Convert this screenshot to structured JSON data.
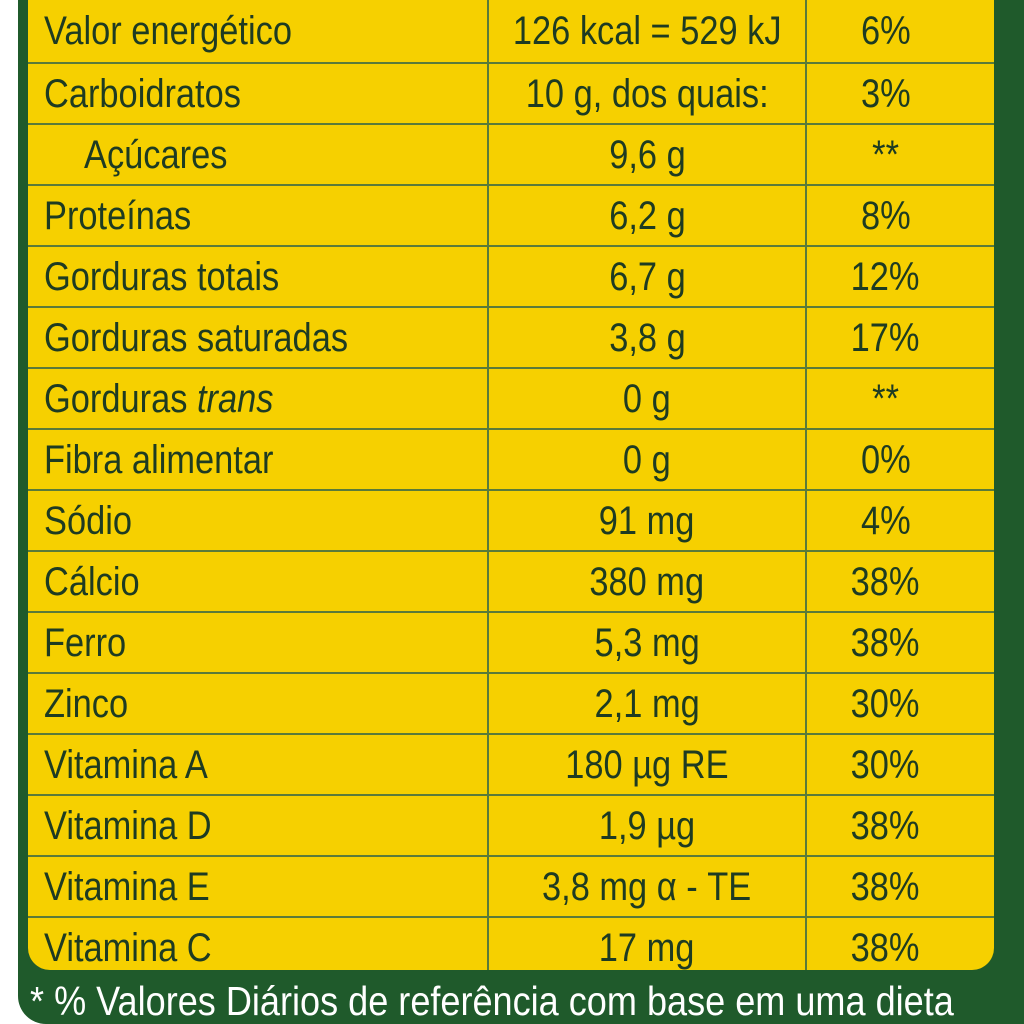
{
  "colors": {
    "table_background": "#f6d000",
    "panel_green": "#1f5a2b",
    "text": "#1e3b22",
    "grid_lines": "#5a7a3a",
    "footnote_text": "#ffffff"
  },
  "nutrition_table": {
    "rows": [
      {
        "name": "Valor energético",
        "quantity": "126 kcal = 529 kJ",
        "vd": "6%"
      },
      {
        "name": "Carboidratos",
        "quantity": "10 g, dos quais:",
        "vd": "3%"
      },
      {
        "name": "Açúcares",
        "quantity": "9,6 g",
        "vd": "**"
      },
      {
        "name": "Proteínas",
        "quantity": "6,2 g",
        "vd": "8%"
      },
      {
        "name": "Gorduras totais",
        "quantity": "6,7 g",
        "vd": "12%"
      },
      {
        "name": "Gorduras saturadas",
        "quantity": "3,8 g",
        "vd": "17%"
      },
      {
        "name": "Gorduras",
        "name_italic": "trans",
        "quantity": "0 g",
        "vd": "**"
      },
      {
        "name": "Fibra alimentar",
        "quantity": "0 g",
        "vd": "0%"
      },
      {
        "name": "Sódio",
        "quantity": "91 mg",
        "vd": "4%"
      },
      {
        "name": "Cálcio",
        "quantity": "380 mg",
        "vd": "38%"
      },
      {
        "name": "Ferro",
        "quantity": "5,3 mg",
        "vd": "38%"
      },
      {
        "name": "Zinco",
        "quantity": "2,1 mg",
        "vd": "30%"
      },
      {
        "name": "Vitamina A",
        "quantity": "180 µg RE",
        "vd": "30%"
      },
      {
        "name": "Vitamina D",
        "quantity": "1,9 µg",
        "vd": "38%"
      },
      {
        "name": "Vitamina E",
        "quantity": "3,8 mg α - TE",
        "vd": "38%"
      },
      {
        "name": "Vitamina C",
        "quantity": "17 mg",
        "vd": "38%"
      }
    ]
  },
  "footnote": "* % Valores Diários de referência com base em uma dieta"
}
